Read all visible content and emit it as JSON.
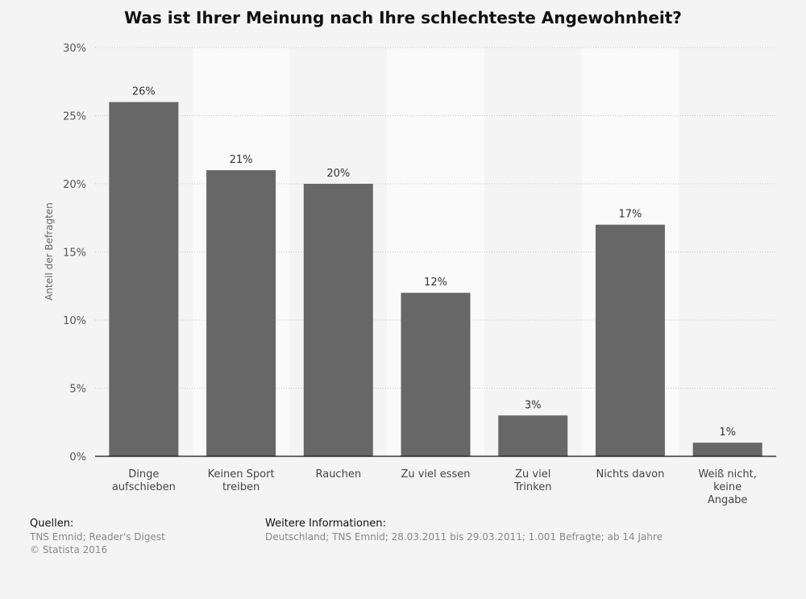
{
  "chart_data": {
    "type": "bar",
    "title": "Was ist Ihrer Meinung nach Ihre schlechteste Angewohnheit?",
    "ylabel": "Anteil der Befragten",
    "xlabel": "",
    "ylim": [
      0,
      30
    ],
    "yticks": [
      "0%",
      "5%",
      "10%",
      "15%",
      "20%",
      "25%",
      "30%"
    ],
    "grid": true,
    "categories": [
      [
        "Dinge",
        "aufschieben"
      ],
      [
        "Keinen Sport",
        "treiben"
      ],
      [
        "Rauchen"
      ],
      [
        "Zu viel essen"
      ],
      [
        "Zu viel",
        "Trinken"
      ],
      [
        "Nichts davon"
      ],
      [
        "Weiß nicht,",
        "keine",
        "Angabe"
      ]
    ],
    "values": [
      26,
      21,
      20,
      12,
      3,
      17,
      1
    ],
    "data_labels": [
      "26%",
      "21%",
      "20%",
      "12%",
      "3%",
      "17%",
      "1%"
    ],
    "bar_color": "#676767"
  },
  "footer": {
    "sources_heading": "Quellen:",
    "sources_line1": "TNS Emnid; Reader's Digest",
    "sources_line2": "© Statista 2016",
    "info_heading": "Weitere Informationen:",
    "info_text": "Deutschland; TNS Emnid; 28.03.2011 bis 29.03.2011; 1.001 Befragte; ab 14 Jahre"
  }
}
